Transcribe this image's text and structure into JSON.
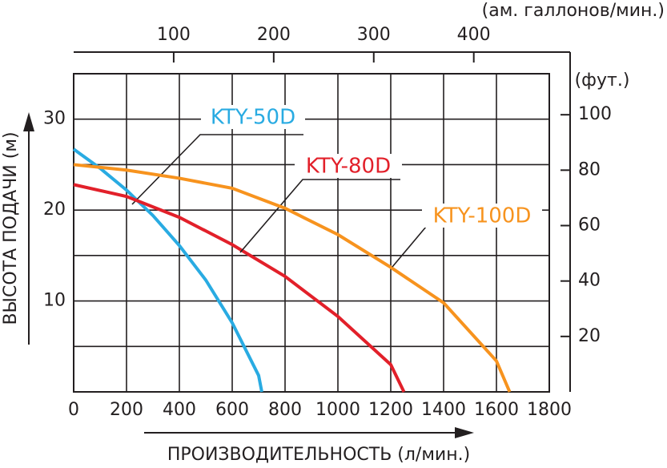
{
  "chart_data": {
    "type": "line",
    "xlabel": "ПРОИЗВОДИТЕЛЬНОСТЬ (л/мин.)",
    "ylabel": "ВЫСОТА ПОДАЧИ (м)",
    "x2label": "(ам. галлонов/мин.)",
    "y2label": "(фут.)",
    "xlim": [
      0,
      1800
    ],
    "xticks": [
      0,
      200,
      400,
      600,
      800,
      1000,
      1200,
      1400,
      1600,
      1800
    ],
    "ylim": [
      0,
      35
    ],
    "yticks": [
      10,
      20,
      30
    ],
    "ygrid": [
      5,
      10,
      15,
      20,
      25,
      30,
      35
    ],
    "x2lim": [
      0,
      475.5
    ],
    "x2ticks": [
      100,
      200,
      300,
      400
    ],
    "y2lim": [
      0,
      114.8
    ],
    "y2ticks": [
      20,
      40,
      60,
      80,
      100
    ],
    "grid": true,
    "series": [
      {
        "name": "KTY-50D",
        "color": "#29abe2",
        "x": [
          0,
          100,
          200,
          300,
          400,
          500,
          600,
          700,
          712
        ],
        "values": [
          26.7,
          24.6,
          22.2,
          19.4,
          16.1,
          12.3,
          7.6,
          1.8,
          0
        ]
      },
      {
        "name": "KTY-80D",
        "color": "#e2202a",
        "x": [
          0,
          200,
          400,
          600,
          800,
          1000,
          1200,
          1250
        ],
        "values": [
          22.8,
          21.5,
          19.2,
          16.2,
          12.7,
          8.3,
          3.0,
          0
        ]
      },
      {
        "name": "KTY-100D",
        "color": "#f7931e",
        "x": [
          0,
          200,
          400,
          600,
          800,
          1000,
          1200,
          1400,
          1600,
          1650
        ],
        "values": [
          25.0,
          24.4,
          23.5,
          22.4,
          20.2,
          17.3,
          13.7,
          9.8,
          3.4,
          0
        ]
      }
    ]
  }
}
